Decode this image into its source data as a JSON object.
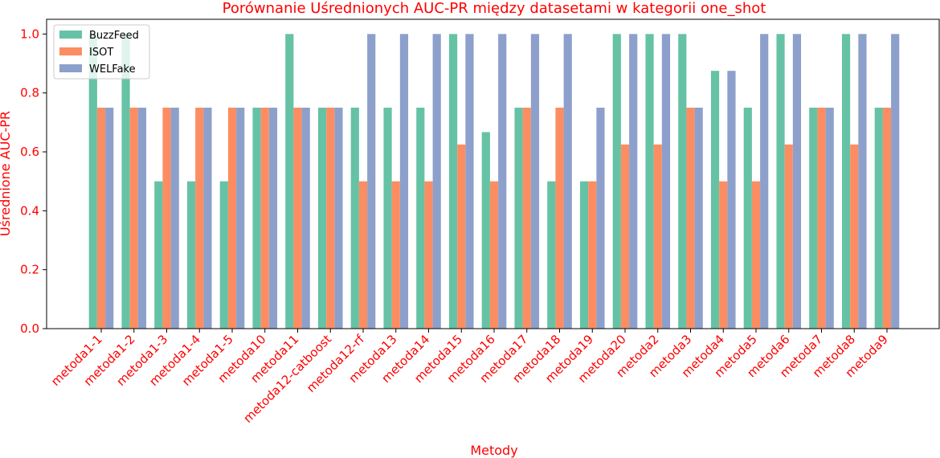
{
  "chart_data": {
    "type": "bar",
    "title": "Porównanie Uśrednionych AUC-PR między datasetami w kategorii one_shot",
    "xlabel": "Metody",
    "ylabel": "Uśrednione AUC-PR",
    "ylim": [
      0,
      1.05
    ],
    "yticks": [
      "0.0",
      "0.2",
      "0.4",
      "0.6",
      "0.8",
      "1.0"
    ],
    "legend_position": "top-left",
    "grid": false,
    "categories": [
      "metoda1-1",
      "metoda1-2",
      "metoda1-3",
      "metoda1-4",
      "metoda1-5",
      "metoda10",
      "metoda11",
      "metoda12-catboost",
      "metoda12-rf",
      "metoda13",
      "metoda14",
      "metoda15",
      "metoda16",
      "metoda17",
      "metoda18",
      "metoda19",
      "metoda20",
      "metoda2",
      "metoda3",
      "metoda4",
      "metoda5",
      "metoda6",
      "metoda7",
      "metoda8",
      "metoda9"
    ],
    "series": [
      {
        "name": "BuzzFeed",
        "color": "#66c2a5",
        "values": [
          1.0,
          1.0,
          0.5,
          0.5,
          0.5,
          0.75,
          1.0,
          0.75,
          0.75,
          0.75,
          0.75,
          1.0,
          0.667,
          0.75,
          0.5,
          0.5,
          1.0,
          1.0,
          1.0,
          0.875,
          0.75,
          1.0,
          0.75,
          1.0,
          0.75
        ]
      },
      {
        "name": "ISOT",
        "color": "#fc8d62",
        "values": [
          0.75,
          0.75,
          0.75,
          0.75,
          0.75,
          0.75,
          0.75,
          0.75,
          0.5,
          0.5,
          0.5,
          0.625,
          0.5,
          0.75,
          0.75,
          0.5,
          0.625,
          0.625,
          0.75,
          0.5,
          0.5,
          0.625,
          0.75,
          0.625,
          0.75
        ]
      },
      {
        "name": "WELFake",
        "color": "#8da0cb",
        "values": [
          0.75,
          0.75,
          0.75,
          0.75,
          0.75,
          0.75,
          0.75,
          0.75,
          1.0,
          1.0,
          1.0,
          1.0,
          1.0,
          1.0,
          1.0,
          0.75,
          1.0,
          1.0,
          0.75,
          0.875,
          1.0,
          1.0,
          0.75,
          1.0,
          1.0
        ]
      }
    ]
  }
}
